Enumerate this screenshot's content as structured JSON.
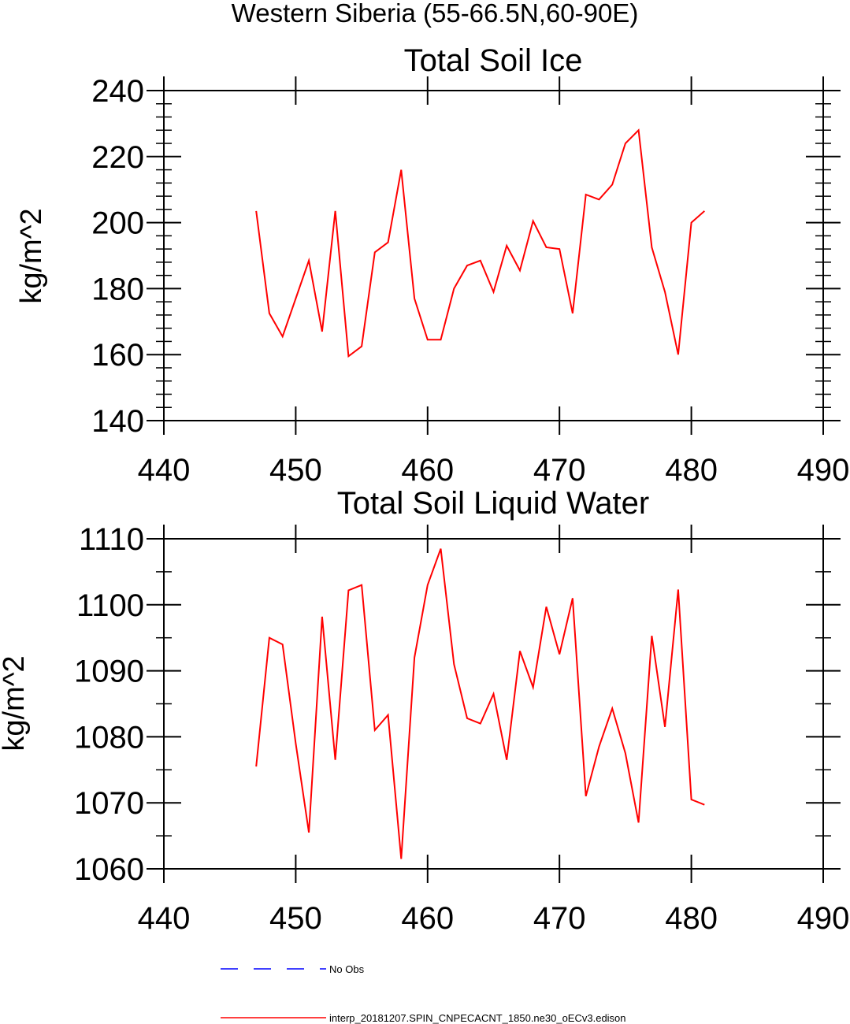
{
  "suptitle": "Western Siberia (55-66.5N,60-90E)",
  "legend": [
    {
      "label": "No Obs",
      "color": "#0000ff",
      "style": "dashed"
    },
    {
      "label": "interp_20181207.SPIN_CNPECACNT_1850.ne30_oECv3.edison",
      "color": "#ff0000",
      "style": "solid"
    }
  ],
  "chart_data": [
    {
      "type": "line",
      "title": "Total Soil Ice",
      "ylabel": "kg/m^2",
      "xlabel": "",
      "xlim": [
        440,
        490
      ],
      "ylim": [
        140,
        240
      ],
      "xticks": [
        440,
        450,
        460,
        470,
        480,
        490
      ],
      "yticks": [
        140,
        160,
        180,
        200,
        220,
        240
      ],
      "yminor": 5,
      "grid": false,
      "series": [
        {
          "color": "#ff0000",
          "x": [
            447,
            448,
            449,
            450,
            451,
            452,
            453,
            454,
            455,
            456,
            457,
            458,
            459,
            460,
            461,
            462,
            463,
            464,
            465,
            466,
            467,
            468,
            469,
            470,
            471,
            472,
            473,
            474,
            475,
            476,
            477,
            478,
            479,
            480,
            481
          ],
          "y": [
            203.5,
            172.5,
            165.5,
            177,
            188.5,
            167,
            203.5,
            159.5,
            162.5,
            191,
            194,
            216,
            177,
            164.5,
            164.5,
            180,
            187,
            188.5,
            179,
            193,
            185.5,
            200.5,
            192.5,
            192,
            172.5,
            208.5,
            207,
            211.5,
            224,
            228,
            192.5,
            179,
            160,
            200,
            203.5
          ]
        }
      ]
    },
    {
      "type": "line",
      "title": "Total Soil Liquid Water",
      "ylabel": "kg/m^2",
      "xlabel": "",
      "xlim": [
        440,
        490
      ],
      "ylim": [
        1060,
        1110
      ],
      "xticks": [
        440,
        450,
        460,
        470,
        480,
        490
      ],
      "yticks": [
        1060,
        1070,
        1080,
        1090,
        1100,
        1110
      ],
      "yminor": 2,
      "grid": false,
      "series": [
        {
          "color": "#ff0000",
          "x": [
            447,
            448,
            449,
            450,
            451,
            452,
            453,
            454,
            455,
            456,
            457,
            458,
            459,
            460,
            461,
            462,
            463,
            464,
            465,
            466,
            467,
            468,
            469,
            470,
            471,
            472,
            473,
            474,
            475,
            476,
            477,
            478,
            479,
            480,
            481
          ],
          "y": [
            1075.5,
            1095,
            1094,
            1079,
            1065.5,
            1098.2,
            1076.5,
            1102.2,
            1103,
            1081,
            1083.3,
            1061.5,
            1092,
            1103,
            1108.5,
            1091,
            1082.8,
            1082,
            1086.5,
            1076.5,
            1093,
            1087.5,
            1099.7,
            1092.5,
            1101,
            1071,
            1078.5,
            1084.3,
            1077.5,
            1067,
            1095.3,
            1081.5,
            1102.3,
            1070.5,
            1069.7
          ]
        }
      ]
    }
  ]
}
